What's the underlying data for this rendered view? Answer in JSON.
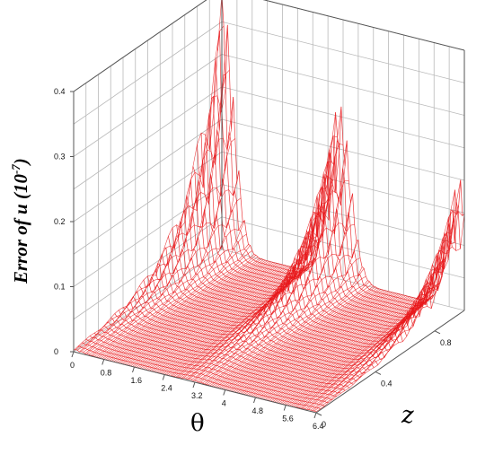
{
  "chart_data": {
    "type": "surface",
    "title": "",
    "xlabel": "θ",
    "ylabel": "z",
    "zlabel_prefix": "Error of ",
    "zlabel_var": "u",
    "zlabel_unit": " (10",
    "zlabel_exp": "-7",
    "zlabel_close": ")",
    "x_range": [
      0,
      6.4
    ],
    "y_range": [
      0,
      1
    ],
    "z_range": [
      0,
      0.4
    ],
    "x_ticks": [
      "0",
      "0.8",
      "1.6",
      "2.4",
      "3.2",
      "4",
      "4.8",
      "5.6",
      "6.4"
    ],
    "y_ticks": [
      "0",
      "0.4",
      "0.8"
    ],
    "z_ticks": [
      "0",
      "0.1",
      "0.2",
      "0.3",
      "0.4"
    ],
    "grid": true,
    "color": "#e8191c",
    "peak_ridges": [
      {
        "z": 1.0,
        "theta": 0.0,
        "max_error": 0.4
      },
      {
        "z": 1.0,
        "theta": 3.1,
        "max_error": 0.27
      },
      {
        "z": 1.0,
        "theta": 6.28,
        "max_error": 0.2
      }
    ]
  }
}
